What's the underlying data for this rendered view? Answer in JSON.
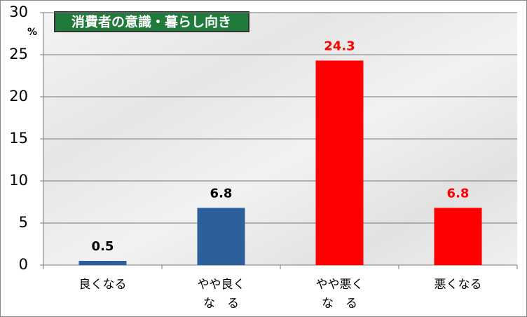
{
  "chart_data": {
    "type": "bar",
    "title": "消費者の意識・暮らし向き",
    "y_unit": "%",
    "categories": [
      "良くなる",
      "やや良く\nな　る",
      "やや悪く\nな　る",
      "悪くなる"
    ],
    "values": [
      0.5,
      6.8,
      24.3,
      6.8
    ],
    "colors": [
      "#2d5f9c",
      "#2d5f9c",
      "#ff0000",
      "#ff0000"
    ],
    "value_label_colors": [
      "#000000",
      "#000000",
      "#ff0000",
      "#ff0000"
    ],
    "ylim": [
      0,
      30
    ],
    "yticks": [
      0,
      5,
      10,
      15,
      20,
      25,
      30
    ],
    "grid": true
  }
}
